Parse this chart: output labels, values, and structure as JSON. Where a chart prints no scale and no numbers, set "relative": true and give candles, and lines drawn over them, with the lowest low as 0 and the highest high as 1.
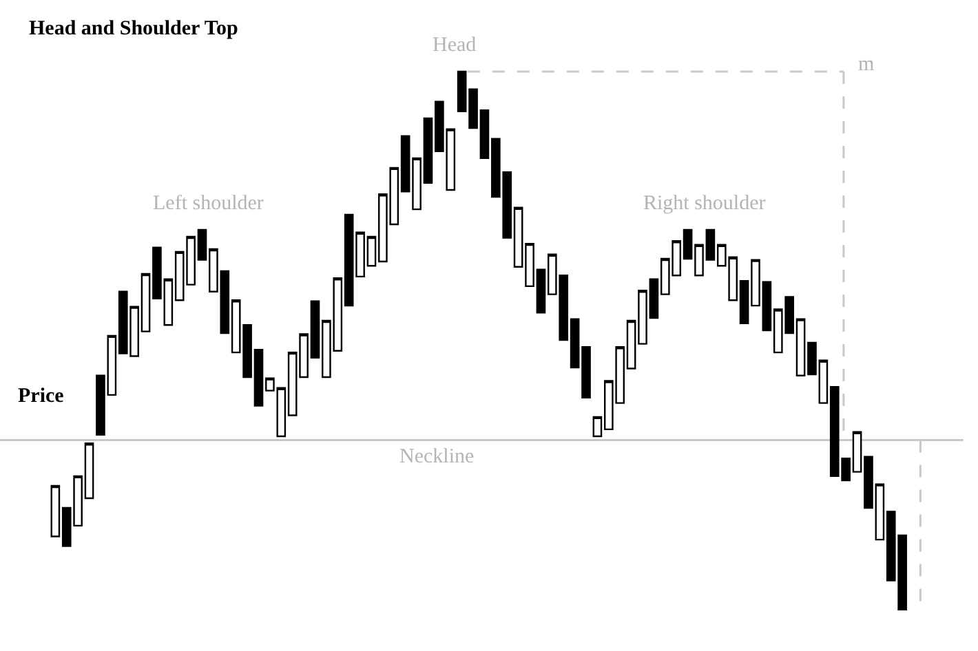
{
  "chart_data": {
    "type": "candlestick",
    "title": "Head and Shoulder Top",
    "ylabel": "Price",
    "relative": true,
    "categories": [
      null,
      null,
      null,
      null,
      null,
      null,
      null,
      null,
      null,
      null,
      null,
      null,
      null,
      null,
      null,
      null,
      null,
      null,
      null,
      null,
      null,
      null,
      null,
      null,
      null,
      null,
      null,
      null,
      null,
      null,
      null,
      null,
      null,
      null,
      null,
      null,
      null,
      null,
      null,
      null,
      null,
      null,
      null,
      null,
      null,
      null,
      null,
      null,
      null,
      null,
      null,
      null,
      null,
      null,
      null,
      null,
      null,
      null,
      null,
      null,
      null,
      null,
      null,
      null,
      null,
      null,
      null,
      null,
      null,
      null,
      null,
      null,
      null,
      null,
      null,
      null
    ],
    "ohlc": [
      [
        0.136,
        0.23,
        0.136,
        0.23
      ],
      [
        0.189,
        0.189,
        0.118,
        0.118
      ],
      [
        0.156,
        0.248,
        0.156,
        0.248
      ],
      [
        0.207,
        0.309,
        0.207,
        0.309
      ],
      [
        0.435,
        0.435,
        0.325,
        0.325
      ],
      [
        0.399,
        0.509,
        0.399,
        0.509
      ],
      [
        0.591,
        0.591,
        0.476,
        0.476
      ],
      [
        0.471,
        0.563,
        0.471,
        0.563
      ],
      [
        0.517,
        0.624,
        0.517,
        0.624
      ],
      [
        0.673,
        0.673,
        0.578,
        0.578
      ],
      [
        0.529,
        0.614,
        0.529,
        0.614
      ],
      [
        0.575,
        0.665,
        0.575,
        0.665
      ],
      [
        0.604,
        0.693,
        0.604,
        0.693
      ],
      [
        0.706,
        0.706,
        0.65,
        0.65
      ],
      [
        0.591,
        0.67,
        0.591,
        0.67
      ],
      [
        0.629,
        0.629,
        0.514,
        0.514
      ],
      [
        0.478,
        0.575,
        0.478,
        0.575
      ],
      [
        0.529,
        0.529,
        0.432,
        0.432
      ],
      [
        0.483,
        0.483,
        0.379,
        0.379
      ],
      [
        0.407,
        0.43,
        0.407,
        0.43
      ],
      [
        0.322,
        0.412,
        0.322,
        0.412
      ],
      [
        0.361,
        0.478,
        0.361,
        0.478
      ],
      [
        0.432,
        0.512,
        0.432,
        0.512
      ],
      [
        0.573,
        0.573,
        0.468,
        0.468
      ],
      [
        0.432,
        0.537,
        0.432,
        0.537
      ],
      [
        0.481,
        0.616,
        0.481,
        0.616
      ],
      [
        0.734,
        0.734,
        0.565,
        0.565
      ],
      [
        0.619,
        0.701,
        0.619,
        0.701
      ],
      [
        0.639,
        0.693,
        0.639,
        0.693
      ],
      [
        0.647,
        0.772,
        0.647,
        0.772
      ],
      [
        0.716,
        0.821,
        0.716,
        0.821
      ],
      [
        0.88,
        0.88,
        0.777,
        0.777
      ],
      [
        0.744,
        0.839,
        0.744,
        0.839
      ],
      [
        0.913,
        0.913,
        0.793,
        0.793
      ],
      [
        0.944,
        0.944,
        0.852,
        0.852
      ],
      [
        0.78,
        0.893,
        0.78,
        0.893
      ],
      [
        1.0,
        1.0,
        0.926,
        0.926
      ],
      [
        0.967,
        0.967,
        0.895,
        0.895
      ],
      [
        0.928,
        0.928,
        0.839,
        0.839
      ],
      [
        0.875,
        0.875,
        0.767,
        0.767
      ],
      [
        0.813,
        0.813,
        0.691,
        0.691
      ],
      [
        0.637,
        0.747,
        0.637,
        0.747
      ],
      [
        0.601,
        0.68,
        0.601,
        0.68
      ],
      [
        0.632,
        0.632,
        0.552,
        0.552
      ],
      [
        0.586,
        0.66,
        0.586,
        0.66
      ],
      [
        0.621,
        0.621,
        0.501,
        0.501
      ],
      [
        0.54,
        0.54,
        0.45,
        0.45
      ],
      [
        0.488,
        0.488,
        0.394,
        0.394
      ],
      [
        0.322,
        0.358,
        0.322,
        0.358
      ],
      [
        0.335,
        0.425,
        0.335,
        0.425
      ],
      [
        0.384,
        0.488,
        0.384,
        0.488
      ],
      [
        0.448,
        0.537,
        0.448,
        0.537
      ],
      [
        0.494,
        0.593,
        0.494,
        0.593
      ],
      [
        0.614,
        0.614,
        0.542,
        0.542
      ],
      [
        0.586,
        0.652,
        0.586,
        0.652
      ],
      [
        0.621,
        0.685,
        0.621,
        0.685
      ],
      [
        0.706,
        0.706,
        0.652,
        0.652
      ],
      [
        0.621,
        0.678,
        0.621,
        0.678
      ],
      [
        0.706,
        0.706,
        0.65,
        0.65
      ],
      [
        0.639,
        0.678,
        0.639,
        0.678
      ],
      [
        0.575,
        0.655,
        0.575,
        0.655
      ],
      [
        0.611,
        0.611,
        0.532,
        0.532
      ],
      [
        0.565,
        0.65,
        0.565,
        0.65
      ],
      [
        0.609,
        0.609,
        0.519,
        0.519
      ],
      [
        0.478,
        0.558,
        0.478,
        0.558
      ],
      [
        0.581,
        0.581,
        0.514,
        0.514
      ],
      [
        0.435,
        0.54,
        0.435,
        0.54
      ],
      [
        0.496,
        0.496,
        0.437,
        0.437
      ],
      [
        0.384,
        0.463,
        0.384,
        0.463
      ],
      [
        0.414,
        0.414,
        0.248,
        0.248
      ],
      [
        0.281,
        0.281,
        0.24,
        0.24
      ],
      [
        0.256,
        0.33,
        0.256,
        0.33
      ],
      [
        0.284,
        0.284,
        0.189,
        0.189
      ],
      [
        0.13,
        0.233,
        0.13,
        0.233
      ],
      [
        0.182,
        0.182,
        0.054,
        0.054
      ],
      [
        0.138,
        0.138,
        0.0,
        0.0
      ]
    ],
    "colors": [
      "#ffffff",
      "#000000",
      "#ffffff",
      "#ffffff",
      "#000000",
      "#ffffff",
      "#000000",
      "#ffffff",
      "#ffffff",
      "#000000",
      "#ffffff",
      "#ffffff",
      "#ffffff",
      "#000000",
      "#ffffff",
      "#000000",
      "#ffffff",
      "#000000",
      "#000000",
      "#ffffff",
      "#ffffff",
      "#ffffff",
      "#ffffff",
      "#000000",
      "#ffffff",
      "#ffffff",
      "#000000",
      "#ffffff",
      "#ffffff",
      "#ffffff",
      "#ffffff",
      "#000000",
      "#ffffff",
      "#000000",
      "#000000",
      "#ffffff",
      "#000000",
      "#000000",
      "#000000",
      "#000000",
      "#000000",
      "#ffffff",
      "#ffffff",
      "#000000",
      "#ffffff",
      "#000000",
      "#000000",
      "#000000",
      "#ffffff",
      "#ffffff",
      "#ffffff",
      "#ffffff",
      "#ffffff",
      "#000000",
      "#ffffff",
      "#ffffff",
      "#000000",
      "#ffffff",
      "#000000",
      "#ffffff",
      "#ffffff",
      "#000000",
      "#ffffff",
      "#000000",
      "#ffffff",
      "#000000",
      "#ffffff",
      "#000000",
      "#ffffff",
      "#000000",
      "#000000",
      "#ffffff",
      "#000000",
      "#ffffff",
      "#000000",
      "#000000"
    ],
    "ref_lines": [
      {
        "axis": "y",
        "value": 0.315,
        "label": "Neckline",
        "color": "#c8c8c8"
      },
      {
        "axis": "y",
        "value": 1.0,
        "color": "#c8c8c8",
        "line_style": "dashed"
      }
    ],
    "annotations": [
      "Head",
      "Left shoulder",
      "Right shoulder",
      "m"
    ]
  }
}
